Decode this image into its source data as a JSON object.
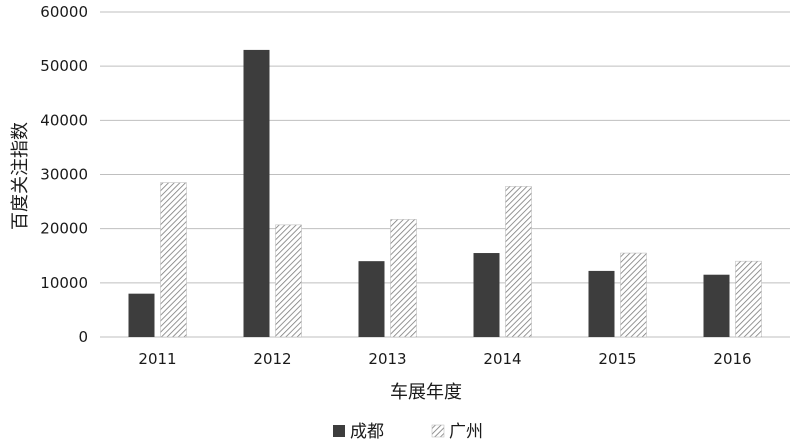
{
  "chart_data": {
    "type": "bar",
    "title": "",
    "xlabel": "车展年度",
    "ylabel": "百度关注指数",
    "categories": [
      "2011",
      "2012",
      "2013",
      "2014",
      "2015",
      "2016"
    ],
    "ylim": [
      0,
      60000
    ],
    "yticks": [
      "0",
      "10000",
      "20000",
      "30000",
      "40000",
      "50000",
      "60000"
    ],
    "grid": true,
    "legend_position": "bottom",
    "series": [
      {
        "name": "成都",
        "values": [
          8000,
          53000,
          14000,
          15500,
          12200,
          11500
        ],
        "fill": "solid",
        "color": "#3d3d3d"
      },
      {
        "name": "广州",
        "values": [
          28500,
          20700,
          21700,
          27800,
          15500,
          14000
        ],
        "fill": "hatched",
        "color": "#7a7a7a"
      }
    ]
  }
}
